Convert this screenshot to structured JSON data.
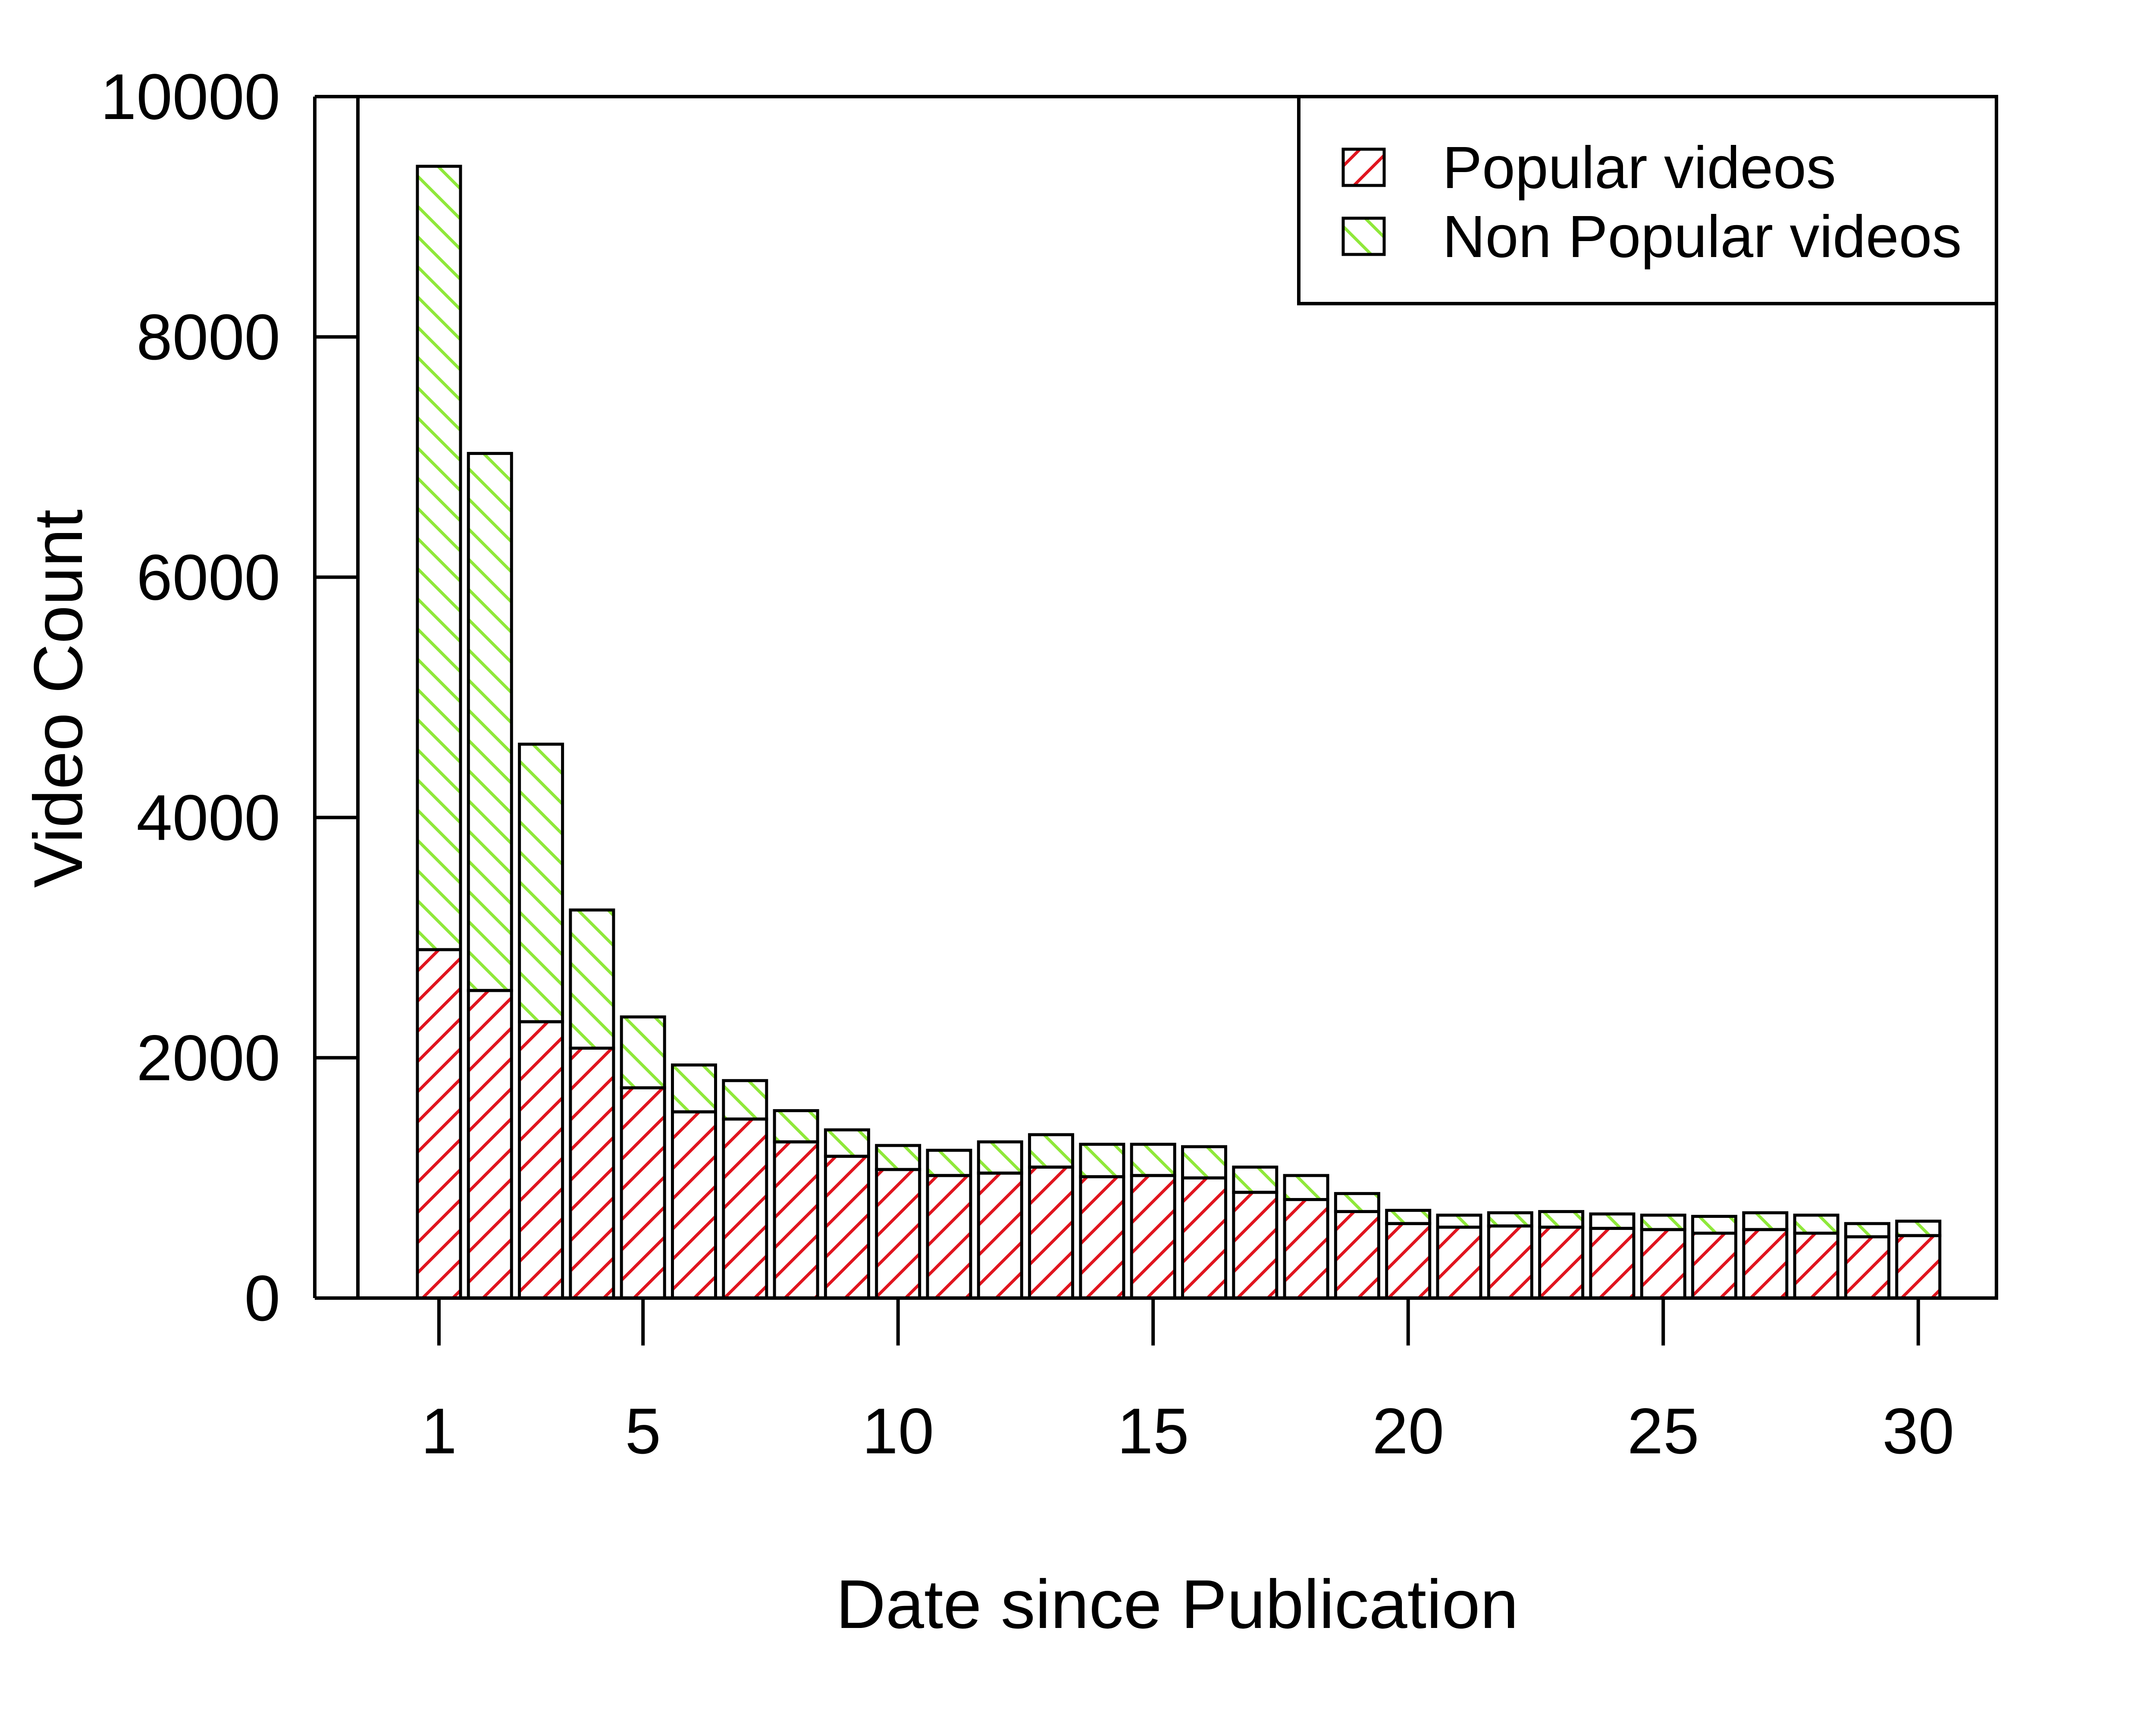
{
  "chart_data": {
    "type": "bar",
    "stacked": true,
    "xlabel": "Date since Publication",
    "ylabel": "Video Count",
    "ylim": [
      0,
      10000
    ],
    "yticks": [
      0,
      2000,
      4000,
      6000,
      8000,
      10000
    ],
    "xticks": [
      1,
      5,
      10,
      15,
      20,
      25,
      30
    ],
    "x": [
      1,
      2,
      3,
      4,
      5,
      6,
      7,
      8,
      9,
      10,
      11,
      12,
      13,
      14,
      15,
      16,
      17,
      18,
      19,
      20,
      21,
      22,
      23,
      24,
      25,
      26,
      27,
      28,
      29,
      30
    ],
    "series": [
      {
        "name": "Popular videos",
        "color": "#e0141e",
        "pattern": "hatch-forward",
        "values": [
          2900,
          2560,
          2300,
          2080,
          1750,
          1550,
          1490,
          1300,
          1180,
          1070,
          1020,
          1040,
          1090,
          1010,
          1020,
          1000,
          880,
          820,
          720,
          620,
          590,
          600,
          590,
          580,
          570,
          540,
          570,
          540,
          510,
          520
        ]
      },
      {
        "name": "Non Popular videos",
        "color": "#8fe83a",
        "pattern": "hatch-backward",
        "values": [
          6520,
          4470,
          2310,
          1150,
          590,
          390,
          320,
          260,
          220,
          200,
          210,
          260,
          270,
          270,
          260,
          260,
          210,
          200,
          150,
          110,
          100,
          110,
          130,
          120,
          120,
          140,
          140,
          150,
          110,
          120
        ]
      }
    ],
    "legend_position": "top-right"
  }
}
